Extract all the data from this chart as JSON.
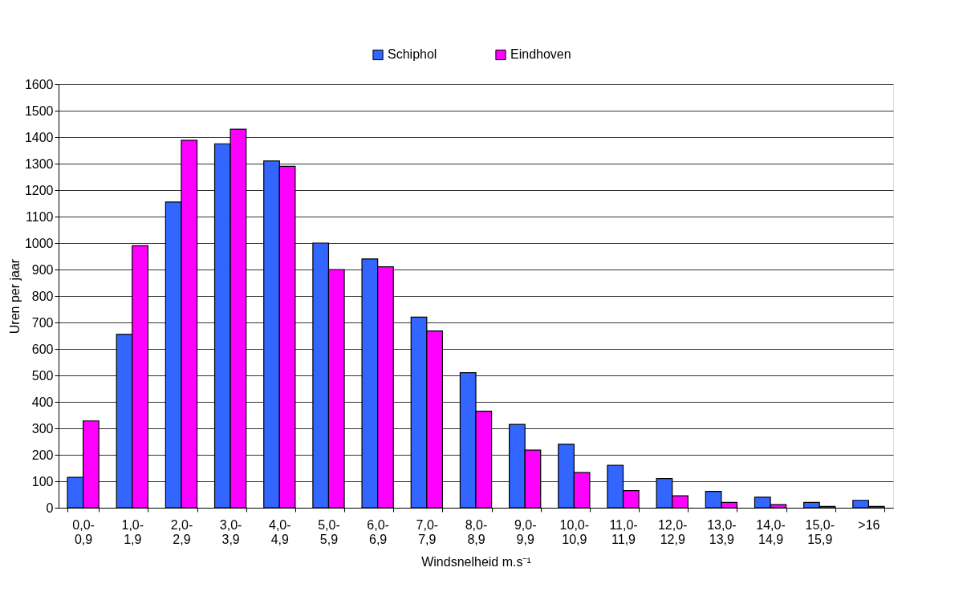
{
  "chart_data": {
    "type": "bar",
    "xlabel": "Windsnelheid m.s⁻¹",
    "ylabel": "Uren per jaar",
    "categories": [
      "0,0-\n0,9",
      "1,0-\n1,9",
      "2,0-\n2,9",
      "3,0-\n3,9",
      "4,0-\n4,9",
      "5,0-\n5,9",
      "6,0-\n6,9",
      "7,0-\n7,9",
      "8,0-\n8,9",
      "9,0-\n9,9",
      "10,0-\n10,9",
      "11,0-\n11,9",
      "12,0-\n12,9",
      "13,0-\n13,9",
      "14,0-\n14,9",
      "15,0-\n15,9",
      ">16"
    ],
    "series": [
      {
        "name": "Schiphol",
        "color": "#3366ff",
        "values": [
          115,
          655,
          1155,
          1375,
          1310,
          1000,
          940,
          720,
          510,
          315,
          240,
          160,
          110,
          62,
          40,
          20,
          28
        ]
      },
      {
        "name": "Eindhoven",
        "color": "#ff00ff",
        "values": [
          328,
          990,
          1388,
          1430,
          1290,
          900,
          910,
          668,
          365,
          218,
          133,
          65,
          45,
          20,
          12,
          5,
          5
        ]
      }
    ],
    "ylim": [
      0,
      1600
    ],
    "yticks": [
      0,
      100,
      200,
      300,
      400,
      500,
      600,
      700,
      800,
      900,
      1000,
      1100,
      1200,
      1300,
      1400,
      1500,
      1600
    ],
    "grid": "y",
    "legend": "top"
  }
}
